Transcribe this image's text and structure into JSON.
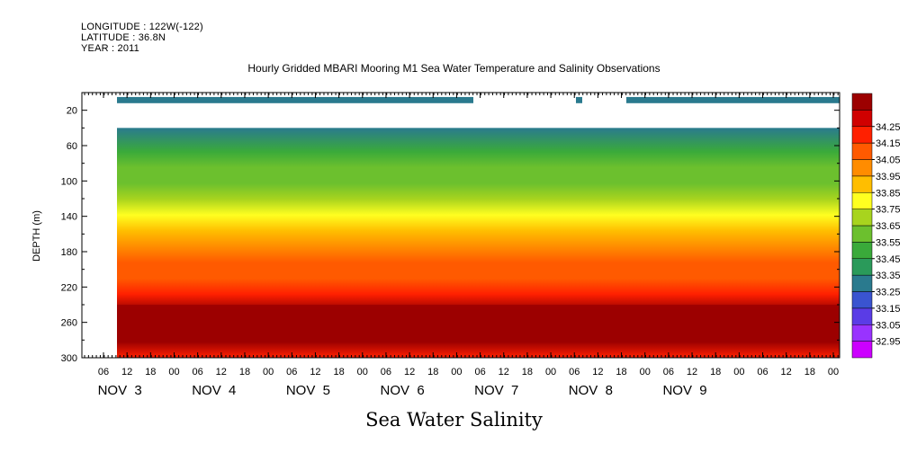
{
  "header": {
    "longitude": "LONGITUDE : 122W(-122)",
    "latitude": "LATITUDE : 36.8N",
    "year": "YEAR : 2011",
    "title": "Hourly Gridded MBARI Mooring M1 Sea Water Temperature and Salinity Observations"
  },
  "chart_data": {
    "type": "heatmap",
    "title": "Hourly Gridded MBARI Mooring M1 Sea Water Temperature and Salinity Observations",
    "xlabel": "Sea Water Salinity",
    "ylabel": "DEPTH (m)",
    "ylim": [
      300,
      0
    ],
    "y_ticks": [
      20,
      60,
      100,
      140,
      180,
      220,
      260,
      300
    ],
    "x_ticks_hours": [
      "06",
      "12",
      "18",
      "00",
      "06",
      "12",
      "18",
      "00",
      "06",
      "12",
      "18",
      "00",
      "06",
      "12",
      "18",
      "00",
      "06",
      "12",
      "18",
      "00",
      "06",
      "12",
      "18",
      "00",
      "06",
      "12",
      "18",
      "00",
      "06",
      "12",
      "18",
      "00"
    ],
    "x_day_labels": [
      "NOV  3",
      "NOV  4",
      "NOV  5",
      "NOV  6",
      "NOV  7",
      "NOV  8",
      "NOV  9"
    ],
    "colorbar": {
      "levels": [
        32.95,
        33.05,
        33.15,
        33.25,
        33.35,
        33.45,
        33.55,
        33.65,
        33.75,
        33.85,
        33.95,
        34.05,
        34.15,
        34.25
      ],
      "labels": [
        "32.95",
        "33.05",
        "33.15",
        "33.25",
        "33.35",
        "33.45",
        "33.55",
        "33.65",
        "33.75",
        "33.85",
        "33.95",
        "34.05",
        "34.15",
        "34.25"
      ],
      "colors": [
        "#cc00ff",
        "#9933ff",
        "#5a3ce6",
        "#3a54d0",
        "#2a7a8e",
        "#2a9a5a",
        "#3aaa3a",
        "#6cc02e",
        "#a8d41e",
        "#ffff20",
        "#ffbe00",
        "#ff8c00",
        "#ff5a00",
        "#ff2000",
        "#d00000",
        "#9c0000"
      ]
    },
    "depth_profile": {
      "depths": [
        10,
        40,
        60,
        80,
        100,
        120,
        140,
        160,
        180,
        200,
        220,
        240,
        260,
        280,
        300
      ],
      "values": [
        33.3,
        33.45,
        33.55,
        33.62,
        33.68,
        33.75,
        33.87,
        33.98,
        34.05,
        34.12,
        34.2,
        34.28,
        34.3,
        34.26,
        34.2
      ]
    },
    "surface_band": {
      "depth_range": [
        5,
        12
      ],
      "value": 33.3
    },
    "data_gap": {
      "depth_range": [
        12,
        40
      ]
    }
  }
}
